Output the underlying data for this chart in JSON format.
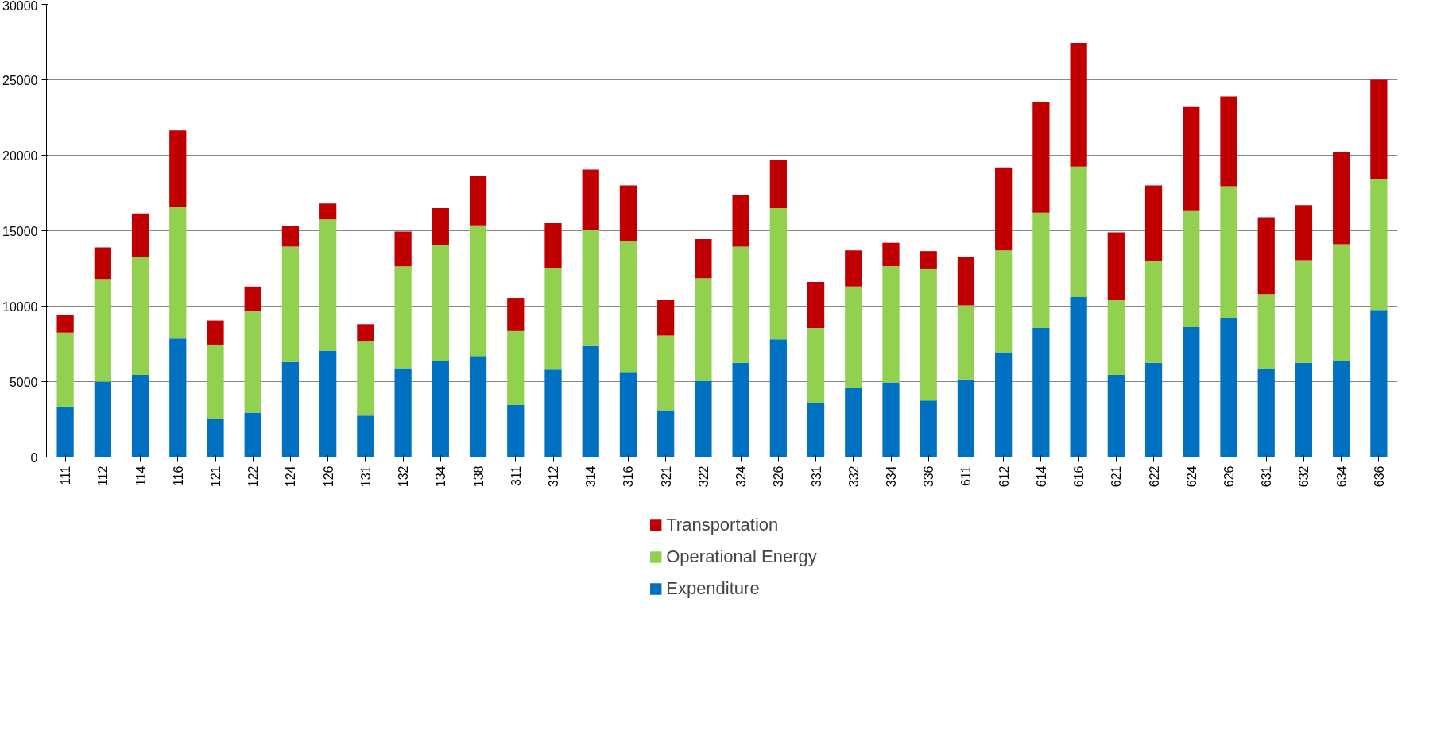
{
  "chart_data": {
    "type": "bar",
    "stacked": true,
    "categories": [
      "111",
      "112",
      "114",
      "116",
      "121",
      "122",
      "124",
      "126",
      "131",
      "132",
      "134",
      "138",
      "311",
      "312",
      "314",
      "316",
      "321",
      "322",
      "324",
      "326",
      "331",
      "332",
      "334",
      "336",
      "611",
      "612",
      "614",
      "616",
      "621",
      "622",
      "624",
      "626",
      "631",
      "632",
      "634",
      "636"
    ],
    "series": [
      {
        "name": "Expenditure",
        "color": "#0070c0",
        "values": [
          3350,
          5000,
          5450,
          7850,
          2500,
          2950,
          6300,
          7050,
          2750,
          5900,
          6350,
          6700,
          3450,
          5800,
          7350,
          5650,
          3100,
          5050,
          6250,
          7800,
          3600,
          4550,
          4950,
          3750,
          5150,
          6950,
          8550,
          10600,
          5450,
          6250,
          8600,
          9200,
          5850,
          6250,
          6400,
          9750
        ]
      },
      {
        "name": "Operational Energy",
        "color": "#92d050",
        "values": [
          4900,
          6800,
          7800,
          8700,
          4950,
          6750,
          7650,
          8700,
          4950,
          6750,
          7700,
          8650,
          4900,
          6700,
          7700,
          8650,
          4950,
          6800,
          7700,
          8700,
          4950,
          6750,
          7700,
          8700,
          4900,
          6750,
          7650,
          8650,
          4950,
          6750,
          7700,
          8750,
          4950,
          6800,
          7700,
          8650
        ]
      },
      {
        "name": "Transportation",
        "color": "#c00000",
        "values": [
          1200,
          2100,
          2900,
          5100,
          1600,
          1600,
          1350,
          1050,
          1100,
          2300,
          2450,
          3250,
          2200,
          3000,
          4000,
          3700,
          2350,
          2600,
          3450,
          3200,
          3050,
          2400,
          1550,
          1200,
          3200,
          5500,
          7300,
          8200,
          4500,
          5000,
          6900,
          5950,
          5100,
          3650,
          6100,
          6600
        ]
      }
    ],
    "ylim": [
      0,
      30000
    ],
    "yticks": [
      0,
      5000,
      10000,
      15000,
      20000,
      25000,
      30000
    ],
    "grid": "y",
    "legend": "bottom"
  }
}
